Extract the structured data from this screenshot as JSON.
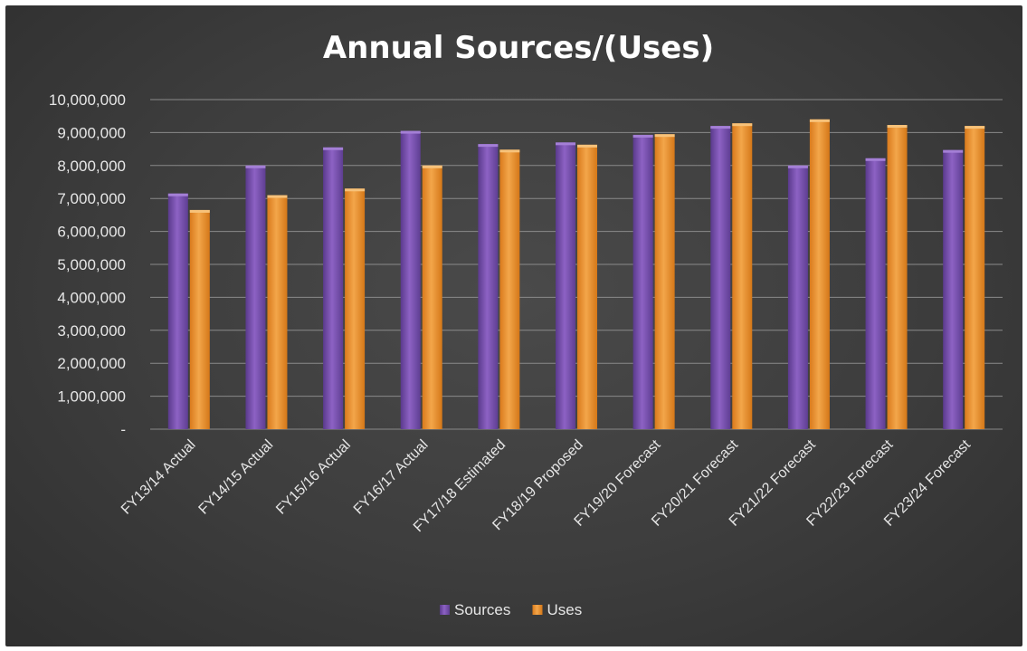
{
  "chart_data": {
    "type": "bar",
    "title": "Annual Sources/(Uses)",
    "categories": [
      "FY13/14 Actual",
      "FY14/15 Actual",
      "FY15/16 Actual",
      "FY16/17 Actual",
      "FY17/18 Estimated",
      "FY18/19 Proposed",
      "FY19/20 Forecast",
      "FY20/21 Forecast",
      "FY21/22 Forecast",
      "FY22/23 Forecast",
      "FY23/24 Forecast"
    ],
    "series": [
      {
        "name": "Sources",
        "color": "#7b52b0",
        "values": [
          7150000,
          8000000,
          8550000,
          9050000,
          8650000,
          8700000,
          8930000,
          9200000,
          8000000,
          8220000,
          8470000
        ]
      },
      {
        "name": "Uses",
        "color": "#e8922f",
        "values": [
          6650000,
          7100000,
          7300000,
          8000000,
          8480000,
          8630000,
          8950000,
          9280000,
          9400000,
          9230000,
          9200000
        ]
      }
    ],
    "yticks": [
      "10,000,000",
      "9,000,000",
      "8,000,000",
      "7,000,000",
      "6,000,000",
      "5,000,000",
      "4,000,000",
      "3,000,000",
      "2,000,000",
      "1,000,000",
      "-"
    ],
    "ylim": [
      0,
      10000000
    ],
    "grid": true,
    "legend_position": "bottom",
    "xlabel": "",
    "ylabel": ""
  }
}
